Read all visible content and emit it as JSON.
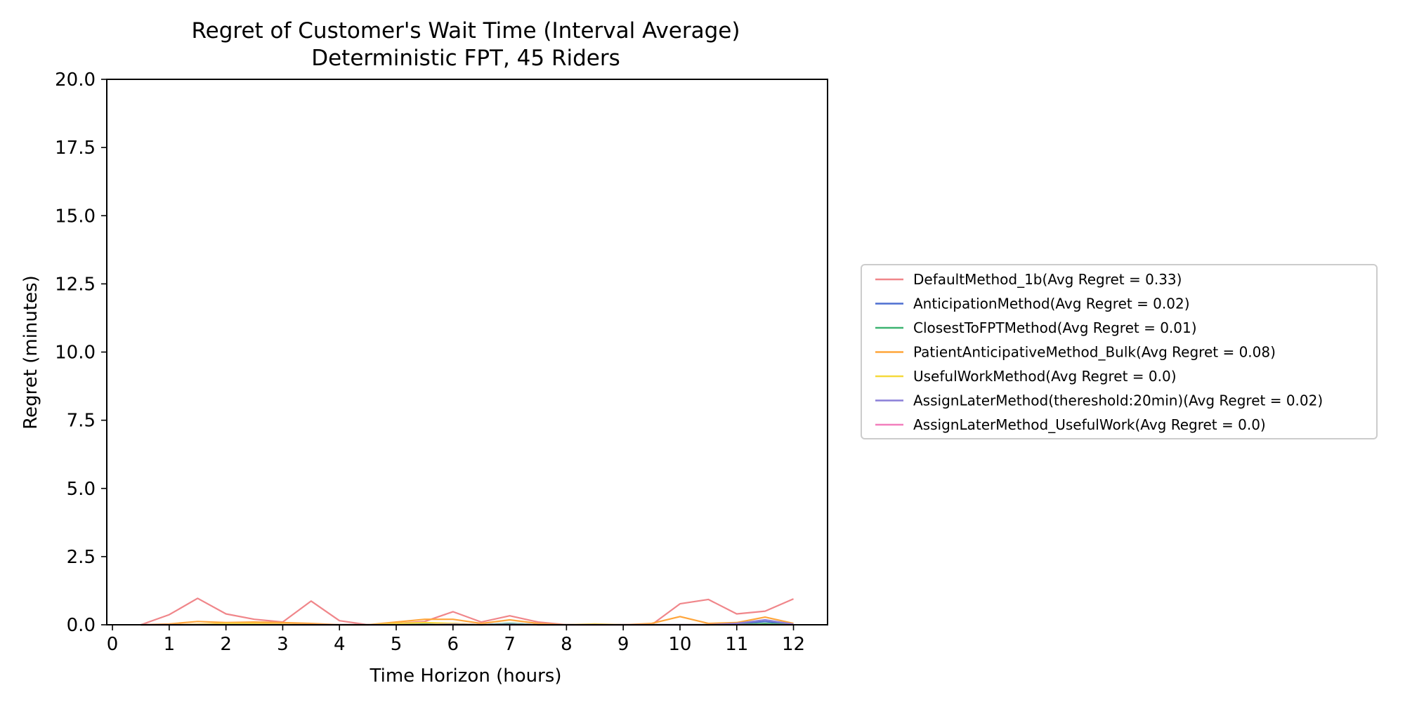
{
  "chart_data": {
    "type": "line",
    "title": "Regret of Customer's Wait Time (Interval Average)",
    "subtitle": "Deterministic FPT, 45 Riders",
    "xlabel": "Time Horizon (hours)",
    "ylabel": "Regret (minutes)",
    "xlim": [
      -0.1,
      12.6
    ],
    "ylim": [
      0,
      20
    ],
    "x_ticks": [
      0,
      1,
      2,
      3,
      4,
      5,
      6,
      7,
      8,
      9,
      10,
      11,
      12
    ],
    "y_ticks": [
      0.0,
      2.5,
      5.0,
      7.5,
      10.0,
      12.5,
      15.0,
      17.5,
      20.0
    ],
    "x_tick_labels": [
      "0",
      "1",
      "2",
      "3",
      "4",
      "5",
      "6",
      "7",
      "8",
      "9",
      "10",
      "11",
      "12"
    ],
    "y_tick_labels": [
      "0.0",
      "2.5",
      "5.0",
      "7.5",
      "10.0",
      "12.5",
      "15.0",
      "17.5",
      "20.0"
    ],
    "grid": false,
    "legend_position": "right",
    "x": [
      0.5,
      1.0,
      1.5,
      2.0,
      2.5,
      3.0,
      3.5,
      4.0,
      4.5,
      5.0,
      5.5,
      6.0,
      6.5,
      7.0,
      7.5,
      8.0,
      8.5,
      9.0,
      9.5,
      10.0,
      10.5,
      11.0,
      11.5,
      12.0
    ],
    "series": [
      {
        "name": "DefaultMethod_1b(Avg Regret = 0.33)",
        "color": "#f0868a",
        "values": [
          0.0,
          0.37,
          0.97,
          0.4,
          0.2,
          0.1,
          0.87,
          0.15,
          0.0,
          0.05,
          0.12,
          0.48,
          0.1,
          0.33,
          0.1,
          0.0,
          0.0,
          0.0,
          0.0,
          0.77,
          0.93,
          0.4,
          0.5,
          0.95
        ]
      },
      {
        "name": "AnticipationMethod(Avg Regret = 0.02)",
        "color": "#4d6fd1",
        "values": [
          0.0,
          0.0,
          0.0,
          0.0,
          0.0,
          0.0,
          0.0,
          0.0,
          0.0,
          0.0,
          0.02,
          0.05,
          0.0,
          0.05,
          0.0,
          0.0,
          0.0,
          0.0,
          0.0,
          0.0,
          0.0,
          0.03,
          0.12,
          0.0
        ]
      },
      {
        "name": "ClosestToFPTMethod(Avg Regret = 0.01)",
        "color": "#3cb371",
        "values": [
          0.0,
          0.0,
          0.0,
          0.0,
          0.0,
          0.0,
          0.0,
          0.0,
          0.0,
          0.0,
          0.02,
          0.0,
          0.0,
          0.05,
          0.0,
          0.0,
          0.0,
          0.0,
          0.0,
          0.0,
          0.0,
          0.0,
          0.05,
          0.0
        ]
      },
      {
        "name": "PatientAnticipativeMethod_Bulk(Avg Regret = 0.08)",
        "color": "#ffa53a",
        "values": [
          0.0,
          0.03,
          0.12,
          0.08,
          0.1,
          0.08,
          0.05,
          0.0,
          0.0,
          0.1,
          0.2,
          0.2,
          0.05,
          0.18,
          0.05,
          0.0,
          0.0,
          0.0,
          0.05,
          0.3,
          0.05,
          0.08,
          0.28,
          0.05
        ]
      },
      {
        "name": "UsefulWorkMethod(Avg Regret = 0.0)",
        "color": "#f5d93b",
        "values": [
          0.0,
          0.0,
          0.02,
          0.05,
          0.05,
          0.02,
          0.0,
          0.0,
          0.0,
          0.05,
          0.08,
          0.05,
          0.0,
          0.02,
          0.0,
          0.0,
          0.03,
          0.0,
          0.0,
          0.0,
          0.0,
          0.0,
          0.0,
          0.0
        ]
      },
      {
        "name": "AssignLaterMethod(thereshold:20min)(Avg Regret = 0.02)",
        "color": "#8a7fd8",
        "values": [
          0.0,
          0.0,
          0.0,
          0.0,
          0.0,
          0.0,
          0.0,
          0.0,
          0.0,
          0.0,
          0.0,
          0.02,
          0.0,
          0.02,
          0.0,
          0.0,
          0.0,
          0.0,
          0.0,
          0.0,
          0.0,
          0.05,
          0.18,
          0.02
        ]
      },
      {
        "name": "AssignLaterMethod_UsefulWork(Avg Regret = 0.0)",
        "color": "#f27fbd",
        "values": [
          0.0,
          0.0,
          0.0,
          0.0,
          0.0,
          0.0,
          0.0,
          0.0,
          0.0,
          0.0,
          0.0,
          0.0,
          0.0,
          0.0,
          0.0,
          0.0,
          0.0,
          0.0,
          0.0,
          0.0,
          0.0,
          0.0,
          0.0,
          0.0
        ]
      }
    ]
  }
}
